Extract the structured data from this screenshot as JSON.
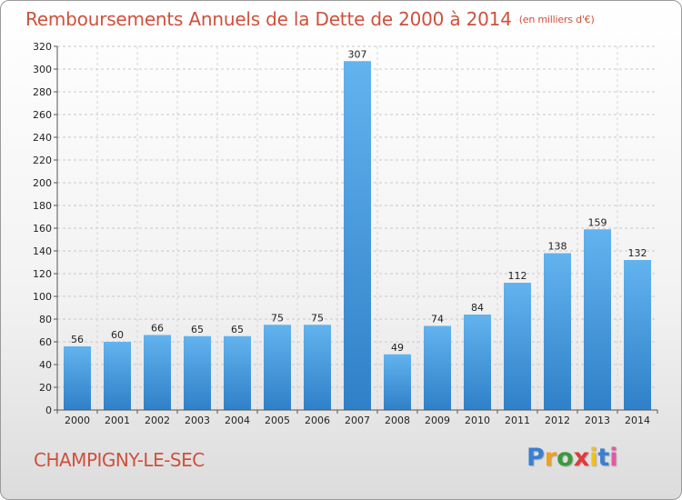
{
  "title": "Remboursements Annuels de la Dette de 2000 à 2014",
  "unit": "(en milliers d'€)",
  "commune": "CHAMPIGNY-LE-SEC",
  "logo": {
    "letters": [
      "P",
      "r",
      "o",
      "x",
      "i",
      "t",
      "i"
    ],
    "colors": [
      "#3a7fd0",
      "#f0a020",
      "#3a9a3a",
      "#e03a3a",
      "#f0c020",
      "#3a7fd0",
      "#e05aa0"
    ]
  },
  "colors": {
    "accent": "#d0503c",
    "bar_light": "#62b3ee",
    "bar_dark": "#2f80c8"
  },
  "chart_data": {
    "type": "bar",
    "title": "Remboursements Annuels de la Dette de 2000 à 2014",
    "ylabel": "en milliers d'€",
    "categories": [
      "2000",
      "2001",
      "2002",
      "2003",
      "2004",
      "2005",
      "2006",
      "2007",
      "2008",
      "2009",
      "2010",
      "2011",
      "2012",
      "2013",
      "2014"
    ],
    "values": [
      56,
      60,
      66,
      65,
      65,
      75,
      75,
      307,
      49,
      74,
      84,
      112,
      138,
      159,
      132
    ],
    "ylim": [
      0,
      320
    ],
    "yticks": [
      0,
      20,
      40,
      60,
      80,
      100,
      120,
      140,
      160,
      180,
      200,
      220,
      240,
      260,
      280,
      300,
      320
    ],
    "grid": true
  }
}
